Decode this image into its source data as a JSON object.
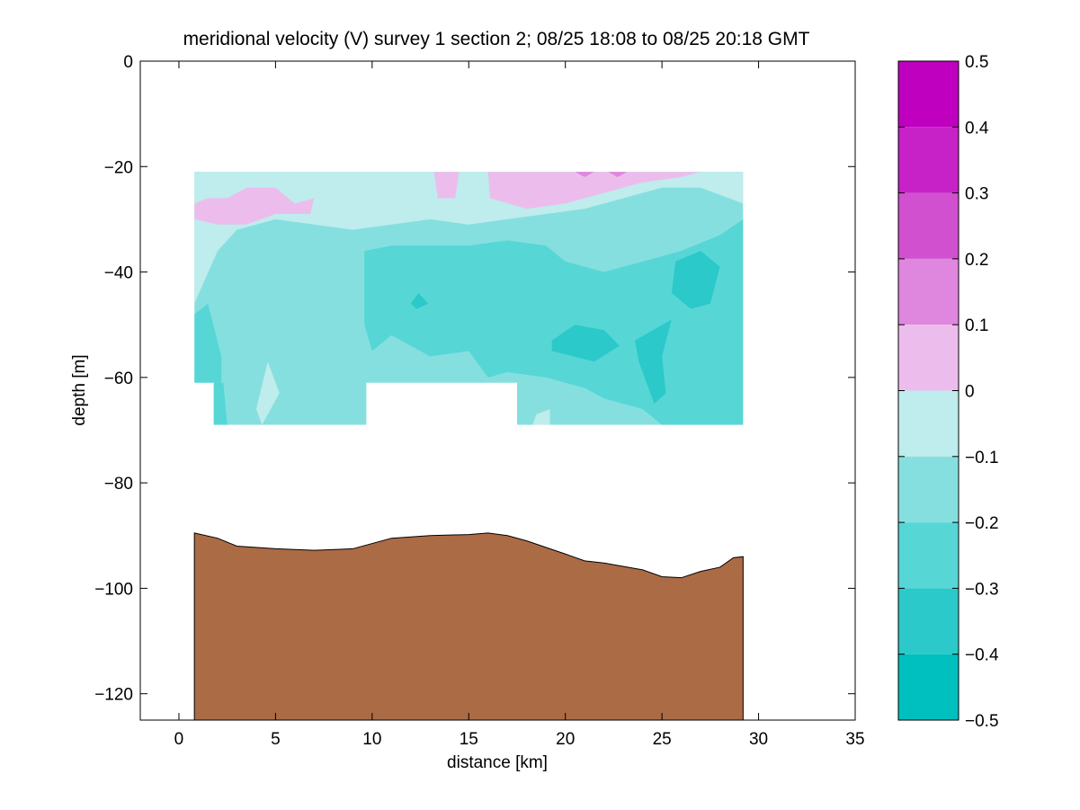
{
  "chart_data": {
    "type": "heatmap",
    "subtype": "filled-contour section",
    "title": "meridional velocity (V) survey 1 section 2; 08/25 18:08 to 08/25 20:18 GMT",
    "xlabel": "distance [km]",
    "ylabel": "depth [m]",
    "xlim": [
      -2,
      35
    ],
    "ylim": [
      -125,
      0
    ],
    "xticks": [
      0,
      5,
      10,
      15,
      20,
      25,
      30,
      35
    ],
    "yticks": [
      0,
      -20,
      -40,
      -60,
      -80,
      -100,
      -120
    ],
    "grid": false,
    "colorbar": {
      "placement": "right",
      "range": [
        -0.5,
        0.5
      ],
      "ticks": [
        0.5,
        0.4,
        0.3,
        0.2,
        0.1,
        0,
        -0.1,
        -0.2,
        -0.3,
        -0.4,
        -0.5
      ],
      "tick_labels": [
        "0.5",
        "0.4",
        "0.3",
        "0.2",
        "0.1",
        "0",
        "−0.1",
        "−0.2",
        "−0.3",
        "−0.4",
        "−0.5"
      ],
      "levels": [
        {
          "range": [
            0.4,
            0.5
          ],
          "color": "#bf00bf"
        },
        {
          "range": [
            0.3,
            0.4
          ],
          "color": "#c722c7"
        },
        {
          "range": [
            0.2,
            0.3
          ],
          "color": "#d050d0"
        },
        {
          "range": [
            0.1,
            0.2
          ],
          "color": "#df86df"
        },
        {
          "range": [
            0.0,
            0.1
          ],
          "color": "#ecbdec"
        },
        {
          "range": [
            -0.1,
            0.0
          ],
          "color": "#bfecec"
        },
        {
          "range": [
            -0.2,
            -0.1
          ],
          "color": "#86dfdf"
        },
        {
          "range": [
            -0.3,
            -0.2
          ],
          "color": "#57d6d6"
        },
        {
          "range": [
            -0.4,
            -0.3
          ],
          "color": "#2bc9c9"
        },
        {
          "range": [
            -0.5,
            -0.4
          ],
          "color": "#00bfbf"
        }
      ]
    },
    "velocity_section": {
      "x_range_km": [
        0.8,
        29.2
      ],
      "top_depth_m": -21,
      "upper_bottom_depth_m": -61,
      "lower_bottom_depth_m": -69,
      "notch_x_km": [
        9.7,
        17.5
      ],
      "notch_depth_m": -61,
      "notes": "dominant values -0.1 to -0.3; positive 0 to 0.1 patches near surface at x 1-6 and 16-27 km; -0.3 to -0.4 cores around x 20-28 km at 35-65 m"
    },
    "bathymetry": {
      "color": "#ab6b45",
      "x": [
        0.8,
        2,
        3,
        5,
        7,
        9,
        10,
        11,
        13,
        15,
        16,
        17,
        18,
        20,
        21,
        22,
        24,
        25,
        26,
        27,
        28,
        28.7,
        29.2
      ],
      "depth": [
        -89.5,
        -90.5,
        -92,
        -92.5,
        -92.8,
        -92.5,
        -91.5,
        -90.5,
        -90,
        -89.8,
        -89.5,
        -90,
        -91,
        -93.5,
        -94.8,
        -95.2,
        -96.5,
        -97.8,
        -98,
        -96.8,
        -96,
        -94.2,
        -94
      ]
    }
  }
}
